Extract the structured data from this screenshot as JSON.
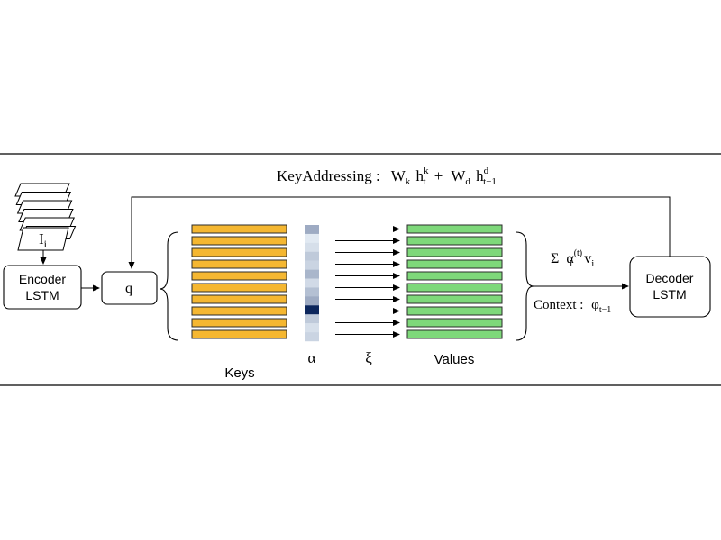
{
  "title": {
    "prefix": "KeyAddressing :",
    "w1": "W",
    "w1_sub": "k",
    "h1": "h",
    "h1_sup": "k",
    "h1_sub": "t",
    "plus": "+",
    "w2": "W",
    "w2_sub": "d",
    "h2": "h",
    "h2_sup": "d",
    "h2_sub": "t−1"
  },
  "input": {
    "label": "I",
    "sub": "i"
  },
  "encoder": {
    "line1": "Encoder",
    "line2": "LSTM"
  },
  "query": {
    "label": "q"
  },
  "keys": {
    "label": "Keys",
    "count": 10,
    "color": "#F5B731"
  },
  "alpha": {
    "label": "α",
    "weights": [
      0.35,
      0.05,
      0.1,
      0.2,
      0.15,
      0.3,
      0.12,
      0.25,
      0.35,
      1.0,
      0.2,
      0.1,
      0.15
    ]
  },
  "xi": {
    "label": "ξ"
  },
  "values": {
    "label": "Values",
    "count": 10,
    "color": "#7ED87A"
  },
  "sum": {
    "sigma": "Σ",
    "alpha": "α",
    "alpha_sup": "(t)",
    "alpha_sub": "i",
    "v": "v",
    "v_sub": "i"
  },
  "context": {
    "label": "Context :",
    "phi": "φ",
    "phi_sub": "t−1"
  },
  "decoder": {
    "line1": "Decoder",
    "line2": "LSTM"
  }
}
